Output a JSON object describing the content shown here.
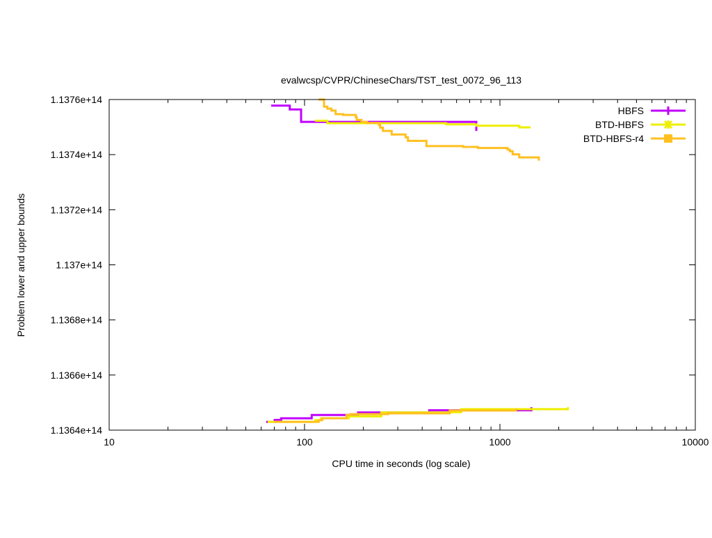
{
  "chart_data": {
    "type": "line",
    "title": "evalwcsp/CVPR/ChineseChars/TST_test_0072_96_113",
    "xlabel": "CPU time in seconds (log scale)",
    "ylabel": "Problem lower and upper bounds",
    "xscale": "log",
    "xlim": [
      10,
      10000
    ],
    "ylim": [
      113640000000000.0,
      113760000000000.0
    ],
    "xticks": [
      10,
      100,
      1000,
      10000
    ],
    "xtick_labels": [
      "10",
      "100",
      "1000",
      "10000"
    ],
    "yticks": [
      113640000000000.0,
      113660000000000.0,
      113680000000000.0,
      113700000000000.0,
      113720000000000.0,
      113740000000000.0,
      113760000000000.0
    ],
    "ytick_labels": [
      "1.1364e+14",
      "1.1366e+14",
      "1.1368e+14",
      "1.137e+14",
      "1.1372e+14",
      "1.1374e+14",
      "1.1376e+14"
    ],
    "grid": false,
    "legend_position": "top-right",
    "series": [
      {
        "name": "HBFS",
        "color": "#c000ff",
        "marker": "plus",
        "upper": [
          [
            67.5,
            113757800000000.0
          ],
          [
            84,
            113756400000000.0
          ],
          [
            96,
            113751900000000.0
          ],
          [
            757,
            113751900000000.0
          ],
          [
            757,
            113748600000000.0
          ]
        ],
        "lower": [
          [
            63.7,
            113643000000000.0
          ],
          [
            70.3,
            113643700000000.0
          ],
          [
            75.9,
            113644300000000.0
          ],
          [
            108.8,
            113645500000000.0
          ],
          [
            187.9,
            113646400000000.0
          ],
          [
            434.6,
            113647200000000.0
          ],
          [
            1449,
            113647200000000.0
          ],
          [
            1449,
            113648300000000.0
          ]
        ]
      },
      {
        "name": "BTD-HBFS",
        "color": "#eeee00",
        "marker": "asterisk",
        "upper": [
          [
            113,
            113752300000000.0
          ],
          [
            131,
            113751400000000.0
          ],
          [
            531,
            113751000000000.0
          ],
          [
            757,
            113750500000000.0
          ],
          [
            1256,
            113749900000000.0
          ],
          [
            1436,
            113749900000000.0
          ]
        ],
        "lower": [
          [
            64.8,
            113643000000000.0
          ],
          [
            113.4,
            113643600000000.0
          ],
          [
            121.4,
            113644300000000.0
          ],
          [
            168.5,
            113645000000000.0
          ],
          [
            247,
            113646400000000.0
          ],
          [
            560,
            113646500000000.0
          ],
          [
            633.8,
            113647600000000.0
          ],
          [
            2227,
            113647600000000.0
          ],
          [
            2227,
            113648300000000.0
          ]
        ]
      },
      {
        "name": "BTD-HBFS-r4",
        "color": "#ffc020",
        "marker": "square",
        "upper": [
          [
            117.8,
            113760000000000.0
          ],
          [
            125.8,
            113757400000000.0
          ],
          [
            130.8,
            113756700000000.0
          ],
          [
            137.3,
            113756000000000.0
          ],
          [
            144.2,
            113754700000000.0
          ],
          [
            157.4,
            113754400000000.0
          ],
          [
            183,
            113753600000000.0
          ],
          [
            184.9,
            113752600000000.0
          ],
          [
            195.8,
            113751900000000.0
          ],
          [
            209.1,
            113751500000000.0
          ],
          [
            240.3,
            113750800000000.0
          ],
          [
            243.7,
            113749800000000.0
          ],
          [
            251.8,
            113748600000000.0
          ],
          [
            279.2,
            113747300000000.0
          ],
          [
            328.9,
            113746300000000.0
          ],
          [
            338.2,
            113745000000000.0
          ],
          [
            420.6,
            113743100000000.0
          ],
          [
            647.8,
            113742800000000.0
          ],
          [
            771.4,
            113742400000000.0
          ],
          [
            1094,
            113741800000000.0
          ],
          [
            1124,
            113741200000000.0
          ],
          [
            1162,
            113740100000000.0
          ],
          [
            1255,
            113739000000000.0
          ],
          [
            1582,
            113739000000000.0
          ],
          [
            1582,
            113737800000000.0
          ]
        ],
        "lower": [
          [
            69.8,
            113643000000000.0
          ],
          [
            118.1,
            113643600000000.0
          ],
          [
            123,
            113644300000000.0
          ],
          [
            163.9,
            113645500000000.0
          ],
          [
            171.7,
            113645800000000.0
          ],
          [
            268,
            113646100000000.0
          ],
          [
            553,
            113647100000000.0
          ],
          [
            1204,
            113647100000000.0
          ],
          [
            1204,
            113647800000000.0
          ]
        ]
      }
    ]
  }
}
